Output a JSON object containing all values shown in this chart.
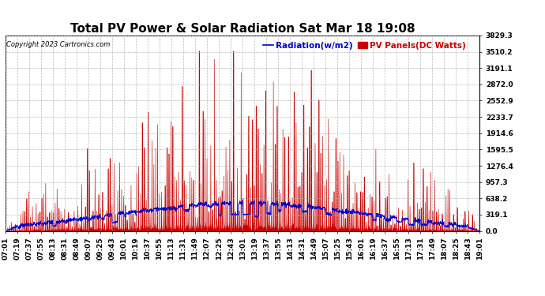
{
  "title": "Total PV Power & Solar Radiation Sat Mar 18 19:08",
  "copyright": "Copyright 2023 Cartronics.com",
  "legend_radiation": "Radiation(w/m2)",
  "legend_pv": "PV Panels(DC Watts)",
  "y_max": 3829.3,
  "y_min": 0.0,
  "y_ticks": [
    0.0,
    319.1,
    638.2,
    957.3,
    1276.4,
    1595.5,
    1914.6,
    2233.7,
    2552.9,
    2872.0,
    3191.1,
    3510.2,
    3829.3
  ],
  "x_labels": [
    "07:01",
    "07:19",
    "07:37",
    "07:55",
    "08:13",
    "08:31",
    "08:49",
    "09:07",
    "09:25",
    "09:43",
    "10:01",
    "10:19",
    "10:37",
    "10:55",
    "11:13",
    "11:31",
    "11:49",
    "12:07",
    "12:25",
    "12:43",
    "13:01",
    "13:19",
    "13:37",
    "13:55",
    "14:13",
    "14:31",
    "14:49",
    "15:07",
    "15:25",
    "15:43",
    "16:01",
    "16:19",
    "16:37",
    "16:55",
    "17:13",
    "17:31",
    "17:49",
    "18:07",
    "18:25",
    "18:43",
    "19:01"
  ],
  "background_color": "#ffffff",
  "fill_color": "#cc0000",
  "line_color": "#0000cc",
  "grid_color": "#aaaaaa",
  "title_fontsize": 11,
  "tick_fontsize": 6.5
}
